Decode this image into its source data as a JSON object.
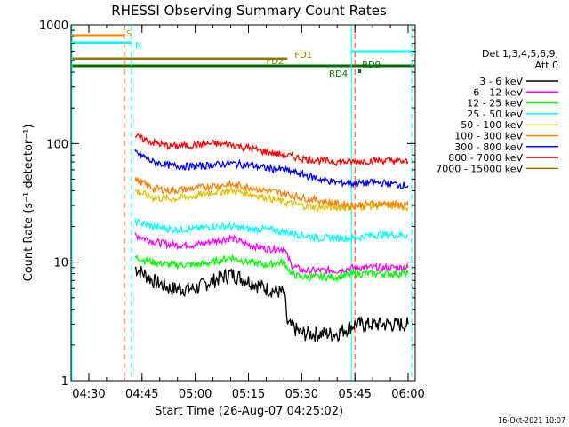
{
  "chart_data": {
    "type": "line",
    "title": "RHESSI Observing Summary Count Rates",
    "xlabel": "Start Time (26-Aug-07 04:25:02)",
    "ylabel": "Count Rate (s⁻¹ detector⁻¹)",
    "y_scale": "log",
    "ylim": [
      1,
      1000
    ],
    "y_ticks": [
      {
        "value": 1,
        "label": "1"
      },
      {
        "value": 10,
        "label": "10"
      },
      {
        "value": 100,
        "label": "100"
      },
      {
        "value": 1000,
        "label": "1000"
      }
    ],
    "xlim": [
      "04:25",
      "06:02"
    ],
    "x_ticks": [
      "04:30",
      "04:45",
      "05:00",
      "05:15",
      "05:30",
      "05:45",
      "06:00"
    ],
    "legend_header": [
      "Det 1,3,4,5,6,9,",
      "Att 0"
    ],
    "legend_placement": "right",
    "series": [
      {
        "name": "3 - 6 keV",
        "color": "#000000",
        "x": [
          "04:43",
          "04:48",
          "04:53",
          "05:00",
          "05:05",
          "05:10",
          "05:15",
          "05:20",
          "05:25",
          "05:26",
          "05:30",
          "05:35",
          "05:40",
          "05:45",
          "05:50",
          "05:55",
          "06:00"
        ],
        "values": [
          9,
          7,
          6,
          6,
          7,
          8,
          7,
          6,
          5.5,
          3,
          2.5,
          2.5,
          2.5,
          3,
          3,
          3,
          3
        ]
      },
      {
        "name": "6 - 12 keV",
        "color": "#ff00ff",
        "x": [
          "04:43",
          "04:48",
          "04:53",
          "05:00",
          "05:05",
          "05:10",
          "05:15",
          "05:20",
          "05:25",
          "05:27",
          "05:30",
          "05:35",
          "05:40",
          "05:45",
          "05:50",
          "05:55",
          "06:00"
        ],
        "values": [
          17,
          15,
          14,
          14,
          15,
          16,
          14,
          13,
          13,
          9.5,
          8.5,
          8.5,
          8.5,
          9,
          9,
          9,
          9
        ]
      },
      {
        "name": "12 - 25 keV",
        "color": "#00ff00",
        "x": [
          "04:43",
          "04:48",
          "04:53",
          "05:00",
          "05:05",
          "05:10",
          "05:15",
          "05:20",
          "05:25",
          "05:27",
          "05:30",
          "05:35",
          "05:40",
          "05:45",
          "05:50",
          "05:55",
          "06:00"
        ],
        "values": [
          11,
          10,
          9.5,
          9.5,
          10,
          11,
          10,
          9.5,
          10,
          8,
          7.5,
          7.5,
          7.5,
          8,
          8,
          8,
          8
        ]
      },
      {
        "name": "25 - 50 keV",
        "color": "#00ffff",
        "x": [
          "04:43",
          "04:48",
          "04:53",
          "05:00",
          "05:05",
          "05:10",
          "05:15",
          "05:20",
          "05:25",
          "05:30",
          "05:35",
          "05:40",
          "05:45",
          "05:50",
          "05:55",
          "06:00"
        ],
        "values": [
          22,
          20,
          19,
          19,
          20,
          20,
          19,
          19,
          18,
          17,
          16,
          16,
          16,
          17,
          17,
          17
        ]
      },
      {
        "name": "50 - 100 keV",
        "color": "#e0c000",
        "x": [
          "04:43",
          "04:48",
          "04:53",
          "05:00",
          "05:05",
          "05:10",
          "05:15",
          "05:20",
          "05:25",
          "05:30",
          "05:35",
          "05:40",
          "05:45",
          "05:50",
          "05:55",
          "06:00"
        ],
        "values": [
          40,
          35,
          34,
          36,
          39,
          40,
          38,
          35,
          32,
          30,
          29,
          29,
          29,
          30,
          30,
          29
        ]
      },
      {
        "name": "100 - 300 keV",
        "color": "#ff8000",
        "x": [
          "04:43",
          "04:48",
          "04:53",
          "05:00",
          "05:05",
          "05:10",
          "05:15",
          "05:20",
          "05:25",
          "05:30",
          "05:35",
          "05:40",
          "05:45",
          "05:50",
          "05:55",
          "06:00"
        ],
        "values": [
          50,
          42,
          40,
          42,
          44,
          45,
          43,
          40,
          38,
          35,
          33,
          31,
          30,
          31,
          31,
          30
        ]
      },
      {
        "name": "300 - 800 keV",
        "color": "#0000ff",
        "x": [
          "04:43",
          "04:48",
          "04:53",
          "05:00",
          "05:05",
          "05:10",
          "05:15",
          "05:20",
          "05:25",
          "05:30",
          "05:35",
          "05:40",
          "05:45",
          "05:50",
          "05:55",
          "06:00"
        ],
        "values": [
          85,
          70,
          65,
          64,
          66,
          68,
          66,
          62,
          60,
          55,
          50,
          47,
          46,
          47,
          46,
          44
        ]
      },
      {
        "name": "800 - 7000 keV",
        "color": "#ff0000",
        "x": [
          "04:43",
          "04:48",
          "04:53",
          "05:00",
          "05:05",
          "05:10",
          "05:15",
          "05:20",
          "05:25",
          "05:30",
          "05:35",
          "05:40",
          "05:45",
          "05:50",
          "05:55",
          "06:00"
        ],
        "values": [
          115,
          102,
          95,
          97,
          100,
          98,
          92,
          85,
          80,
          75,
          72,
          70,
          70,
          72,
          72,
          70
        ]
      },
      {
        "name": "7000 - 15000 keV",
        "color": "#8a7a00",
        "x": [],
        "values": []
      }
    ],
    "flags": [
      {
        "label": "S",
        "color": "#ff8000",
        "start": "04:25",
        "end": "04:40"
      },
      {
        "label": "N",
        "color": "#00ffff",
        "start": "04:25",
        "end": "04:42"
      },
      {
        "label": "N",
        "color": "#00ffff",
        "start": "05:44",
        "end": "06:02"
      },
      {
        "label": "FD1",
        "color": "#8a7a00",
        "start": "04:25",
        "end": "05:26"
      },
      {
        "label": "FD2",
        "color": "#8a7a00",
        "start": "05:26",
        "end": "06:02"
      },
      {
        "label": "RD4",
        "color": "#007000",
        "start": "04:25",
        "end": "06:02"
      },
      {
        "label": "RD9",
        "color": "#007000",
        "start": "05:46",
        "end": "05:46"
      }
    ],
    "markers": [
      {
        "time": "04:40",
        "color": "#ff4000",
        "style": "dashed"
      },
      {
        "time": "04:42",
        "color": "#00ffff",
        "style": "dashed"
      },
      {
        "time": "05:44",
        "color": "#00ffff",
        "style": "solid"
      },
      {
        "time": "05:45",
        "color": "#ff4000",
        "style": "dashed"
      },
      {
        "time": "06:01",
        "color": "#00ffff",
        "style": "dashed"
      }
    ],
    "grid": false
  },
  "footer": {
    "timestamp": "16-Oct-2021 10:07"
  }
}
